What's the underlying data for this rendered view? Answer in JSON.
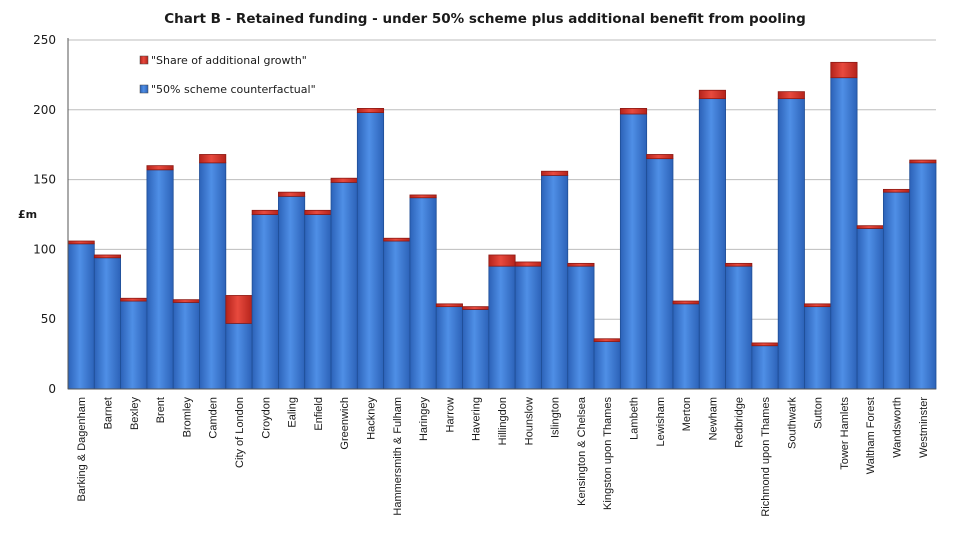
{
  "chart_data": {
    "type": "bar",
    "stacked": true,
    "title": "Chart B - Retained funding - under 50% scheme plus additional benefit from pooling",
    "ylabel": "£m",
    "xlabel": "",
    "ylim": [
      0,
      250
    ],
    "yticks": [
      0,
      50,
      100,
      150,
      200,
      250
    ],
    "grid": true,
    "legend_position": "top-left",
    "categories": [
      "Barking & Dagenham",
      "Barnet",
      "Bexley",
      "Brent",
      "Bromley",
      "Camden",
      "City of London",
      "Croydon",
      "Ealing",
      "Enfield",
      "Greenwich",
      "Hackney",
      "Hammersmith & Fulham",
      "Haringey",
      "Harrow",
      "Havering",
      "Hillingdon",
      "Hounslow",
      "Islington",
      "Kensington & Chelsea",
      "Kingston upon Thames",
      "Lambeth",
      "Lewisham",
      "Merton",
      "Newham",
      "Redbridge",
      "Richmond upon Thames",
      "Southwark",
      "Sutton",
      "Tower Hamlets",
      "Waltham Forest",
      "Wandsworth",
      "Westminster"
    ],
    "series": [
      {
        "name": "\"50% scheme counterfactual\"",
        "color": "#3a78d4",
        "values": [
          104,
          94,
          63,
          157,
          62,
          162,
          47,
          125,
          138,
          125,
          148,
          198,
          106,
          137,
          59,
          57,
          88,
          88,
          153,
          88,
          34,
          197,
          165,
          61,
          208,
          88,
          31,
          208,
          59,
          223,
          115,
          141,
          162
        ]
      },
      {
        "name": "\"Share of additional growth\"",
        "color": "#d32f2f",
        "values": [
          2,
          2,
          2,
          3,
          2,
          6,
          20,
          3,
          3,
          3,
          3,
          3,
          2,
          2,
          2,
          2,
          8,
          3,
          3,
          2,
          2,
          4,
          3,
          2,
          6,
          2,
          2,
          5,
          2,
          11,
          2,
          2,
          2
        ]
      }
    ]
  }
}
